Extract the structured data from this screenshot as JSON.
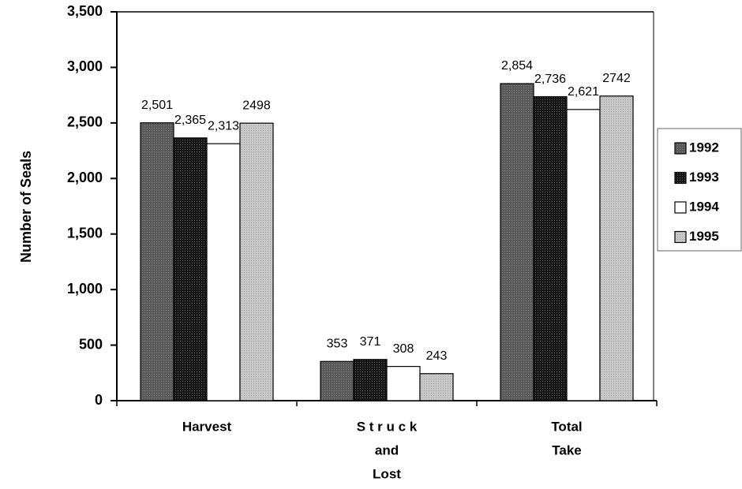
{
  "chart_data": {
    "type": "bar",
    "y_label": "Number of Seals",
    "categories": [
      [
        "Harvest"
      ],
      [
        "S t r u c k",
        "and",
        "Lost"
      ],
      [
        "Total",
        "Take"
      ]
    ],
    "series": [
      {
        "name": "1992",
        "color": "#5a5a5a",
        "values": [
          2501,
          353,
          2854
        ],
        "value_labels": [
          "2,501",
          "353",
          "2,854"
        ]
      },
      {
        "name": "1993",
        "color": "#151515",
        "values": [
          2365,
          371,
          2736
        ],
        "value_labels": [
          "2,365",
          "371",
          "2,736"
        ]
      },
      {
        "name": "1994",
        "color": "#ffffff",
        "values": [
          2313,
          308,
          2621
        ],
        "value_labels": [
          "2,313",
          "308",
          "2,621"
        ]
      },
      {
        "name": "1995",
        "color": "#c8c8c8",
        "values": [
          2498,
          243,
          2742
        ],
        "value_labels": [
          "2498",
          "243",
          "2742"
        ]
      }
    ],
    "ylim": [
      0,
      3500
    ],
    "yticks": [
      0,
      500,
      {
        "value": 1000,
        "label": "1,000"
      },
      {
        "value": 1500,
        "label": "1,500"
      },
      {
        "value": 2000,
        "label": "2,000"
      },
      {
        "value": 2500,
        "label": "2,500"
      },
      {
        "value": 3000,
        "label": "3,000"
      },
      {
        "value": 3500,
        "label": "3,500"
      }
    ],
    "legend": "right"
  }
}
